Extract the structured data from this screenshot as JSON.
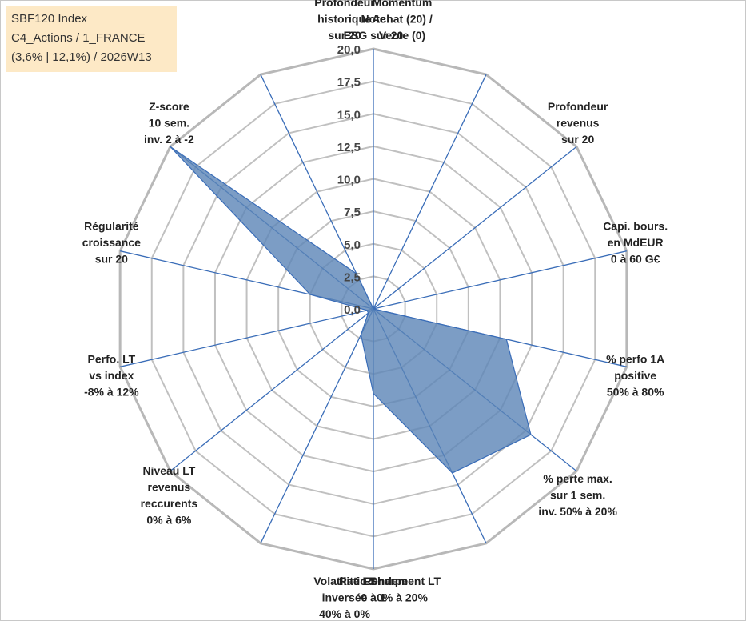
{
  "info_box": {
    "line1": "SBF120 Index",
    "line2": "C4_Actions / 1_FRANCE",
    "line3": "(3,6% | 12,1%) / 2026W13"
  },
  "colors": {
    "fill": "#5b84b6",
    "spoke": "#3a6db8",
    "grid": "#c0c0c0",
    "outer_ring": "#b8b8b8"
  },
  "chart_data": {
    "type": "radar",
    "rmin": 0,
    "rmax": 20,
    "tick_step": 2.5,
    "tick_labels": [
      "0,0",
      "2,5",
      "5,0",
      "7,5",
      "10,0",
      "12,5",
      "15,0",
      "17,5",
      "20,0"
    ],
    "axes": [
      {
        "label": [
          "Note",
          "ESG sur 20"
        ],
        "value": 0
      },
      {
        "label": [
          "Profondeur",
          "historique",
          "sur 20"
        ],
        "value": 0
      },
      {
        "label": [
          "Profondeur",
          "revenus",
          "sur 20"
        ],
        "value": 0
      },
      {
        "label": [
          "Capi. bours.",
          "en MdEUR",
          "0 à 60 G€"
        ],
        "value": 0
      },
      {
        "label": [
          "% perfo 1A",
          "positive",
          "50% à 80%"
        ],
        "value": 10.5
      },
      {
        "label": [
          "% perte max.",
          "sur 1 sem.",
          "inv. 50% à 20%"
        ],
        "value": 15.5
      },
      {
        "label": [
          "Volatilité LT",
          "inversée",
          "40% à 0%"
        ],
        "value": 14
      },
      {
        "label": [
          "Ratio Sharpe",
          "0 à 1"
        ],
        "value": 6.5
      },
      {
        "label": [
          "Rendement LT",
          "0% à 20%"
        ],
        "value": 2.2
      },
      {
        "label": [
          "Niveau LT",
          "revenus",
          "reccurents",
          "0% à 6%"
        ],
        "value": 0.5
      },
      {
        "label": [
          "Perfo. LT",
          "vs index",
          "-8% à 12%"
        ],
        "value": 0.5
      },
      {
        "label": [
          "Régularité",
          "croissance",
          "sur 20"
        ],
        "value": 5
      },
      {
        "label": [
          "Z-score",
          "10 sem.",
          "inv. 2 à -2"
        ],
        "value": 20
      },
      {
        "label": [
          "Momentum",
          "Achat (20) /",
          "Vente (0)"
        ],
        "value": 3
      }
    ]
  }
}
